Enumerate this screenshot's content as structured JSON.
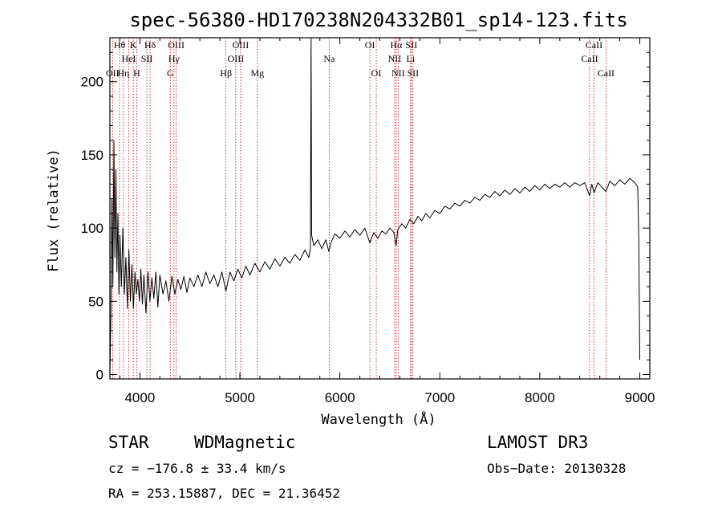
{
  "chart_data": {
    "type": "line",
    "title": "spec-56380-HD170238N204332B01_sp14-123.fits",
    "xlabel": "Wavelength (Å)",
    "ylabel": "Flux (relative)",
    "xlim": [
      3700,
      9100
    ],
    "ylim": [
      -3,
      230
    ],
    "x_ticks": [
      4000,
      5000,
      6000,
      7000,
      8000,
      9000
    ],
    "y_ticks": [
      0,
      50,
      100,
      150,
      200
    ],
    "x_tick_labels": [
      "4000",
      "5000",
      "6000",
      "7000",
      "8000",
      "9000"
    ],
    "y_tick_labels": [
      "0",
      "50",
      "100",
      "150",
      "200"
    ],
    "grid": false,
    "series": [
      {
        "name": "flux",
        "points": [
          [
            3700,
            0
          ],
          [
            3710,
            40
          ],
          [
            3720,
            120
          ],
          [
            3730,
            60
          ],
          [
            3740,
            160
          ],
          [
            3750,
            80
          ],
          [
            3760,
            140
          ],
          [
            3770,
            70
          ],
          [
            3780,
            110
          ],
          [
            3790,
            55
          ],
          [
            3800,
            95
          ],
          [
            3815,
            60
          ],
          [
            3830,
            100
          ],
          [
            3845,
            55
          ],
          [
            3860,
            80
          ],
          [
            3875,
            45
          ],
          [
            3890,
            85
          ],
          [
            3905,
            50
          ],
          [
            3920,
            75
          ],
          [
            3935,
            45
          ],
          [
            3950,
            70
          ],
          [
            3965,
            55
          ],
          [
            3980,
            65
          ],
          [
            3995,
            50
          ],
          [
            4010,
            72
          ],
          [
            4025,
            48
          ],
          [
            4040,
            68
          ],
          [
            4060,
            42
          ],
          [
            4080,
            70
          ],
          [
            4100,
            50
          ],
          [
            4120,
            66
          ],
          [
            4140,
            52
          ],
          [
            4160,
            70
          ],
          [
            4180,
            46
          ],
          [
            4200,
            68
          ],
          [
            4230,
            55
          ],
          [
            4260,
            64
          ],
          [
            4290,
            50
          ],
          [
            4320,
            67
          ],
          [
            4350,
            55
          ],
          [
            4380,
            65
          ],
          [
            4410,
            58
          ],
          [
            4440,
            67
          ],
          [
            4470,
            56
          ],
          [
            4500,
            66
          ],
          [
            4540,
            60
          ],
          [
            4580,
            68
          ],
          [
            4620,
            60
          ],
          [
            4660,
            70
          ],
          [
            4700,
            62
          ],
          [
            4740,
            68
          ],
          [
            4780,
            60
          ],
          [
            4820,
            70
          ],
          [
            4860,
            57
          ],
          [
            4900,
            70
          ],
          [
            4940,
            64
          ],
          [
            4980,
            72
          ],
          [
            5020,
            66
          ],
          [
            5060,
            74
          ],
          [
            5100,
            68
          ],
          [
            5150,
            76
          ],
          [
            5200,
            70
          ],
          [
            5250,
            77
          ],
          [
            5300,
            72
          ],
          [
            5350,
            79
          ],
          [
            5400,
            74
          ],
          [
            5450,
            80
          ],
          [
            5500,
            76
          ],
          [
            5550,
            82
          ],
          [
            5600,
            78
          ],
          [
            5650,
            85
          ],
          [
            5690,
            80
          ],
          [
            5705,
            86
          ],
          [
            5712,
            230
          ],
          [
            5718,
            95
          ],
          [
            5740,
            88
          ],
          [
            5780,
            92
          ],
          [
            5820,
            86
          ],
          [
            5860,
            92
          ],
          [
            5890,
            84
          ],
          [
            5910,
            90
          ],
          [
            5950,
            96
          ],
          [
            6000,
            93
          ],
          [
            6050,
            98
          ],
          [
            6100,
            94
          ],
          [
            6150,
            99
          ],
          [
            6200,
            95
          ],
          [
            6250,
            100
          ],
          [
            6300,
            90
          ],
          [
            6340,
            97
          ],
          [
            6380,
            93
          ],
          [
            6420,
            98
          ],
          [
            6460,
            96
          ],
          [
            6500,
            100
          ],
          [
            6540,
            97
          ],
          [
            6563,
            88
          ],
          [
            6580,
            99
          ],
          [
            6620,
            103
          ],
          [
            6660,
            100
          ],
          [
            6700,
            106
          ],
          [
            6740,
            103
          ],
          [
            6780,
            108
          ],
          [
            6820,
            105
          ],
          [
            6860,
            110
          ],
          [
            6900,
            107
          ],
          [
            6950,
            112
          ],
          [
            7000,
            110
          ],
          [
            7050,
            115
          ],
          [
            7100,
            113
          ],
          [
            7150,
            117
          ],
          [
            7200,
            115
          ],
          [
            7250,
            119
          ],
          [
            7300,
            117
          ],
          [
            7350,
            121
          ],
          [
            7400,
            119
          ],
          [
            7450,
            123
          ],
          [
            7500,
            121
          ],
          [
            7550,
            125
          ],
          [
            7600,
            122
          ],
          [
            7650,
            126
          ],
          [
            7700,
            123
          ],
          [
            7750,
            127
          ],
          [
            7800,
            124
          ],
          [
            7850,
            128
          ],
          [
            7900,
            125
          ],
          [
            7950,
            129
          ],
          [
            8000,
            126
          ],
          [
            8050,
            130
          ],
          [
            8100,
            127
          ],
          [
            8150,
            130
          ],
          [
            8200,
            128
          ],
          [
            8250,
            131
          ],
          [
            8300,
            128
          ],
          [
            8350,
            131
          ],
          [
            8400,
            129
          ],
          [
            8450,
            131
          ],
          [
            8498,
            122
          ],
          [
            8520,
            130
          ],
          [
            8542,
            124
          ],
          [
            8580,
            131
          ],
          [
            8620,
            128
          ],
          [
            8662,
            125
          ],
          [
            8700,
            132
          ],
          [
            8750,
            129
          ],
          [
            8800,
            133
          ],
          [
            8850,
            130
          ],
          [
            8900,
            134
          ],
          [
            8950,
            131
          ],
          [
            8980,
            128
          ],
          [
            8990,
            90
          ],
          [
            9000,
            10
          ]
        ]
      }
    ],
    "line_markers": [
      {
        "label": "OII",
        "wavelength": 3727,
        "row": 3
      },
      {
        "label": "Hθ",
        "wavelength": 3797,
        "row": 1
      },
      {
        "label": "Hη",
        "wavelength": 3835,
        "row": 3
      },
      {
        "label": "HeI",
        "wavelength": 3889,
        "row": 2
      },
      {
        "label": "K",
        "wavelength": 3934,
        "row": 1
      },
      {
        "label": "H",
        "wavelength": 3968,
        "row": 3
      },
      {
        "label": "SII",
        "wavelength": 4070,
        "row": 2
      },
      {
        "label": "Hδ",
        "wavelength": 4102,
        "row": 1
      },
      {
        "label": "G",
        "wavelength": 4304,
        "row": 3
      },
      {
        "label": "Hγ",
        "wavelength": 4341,
        "row": 2
      },
      {
        "label": "OIII",
        "wavelength": 4363,
        "row": 1
      },
      {
        "label": "Hβ",
        "wavelength": 4861,
        "row": 3
      },
      {
        "label": "OIII",
        "wavelength": 4959,
        "row": 2
      },
      {
        "label": "OIII",
        "wavelength": 5007,
        "row": 1
      },
      {
        "label": "Mg",
        "wavelength": 5175,
        "row": 3
      },
      {
        "label": "Na",
        "wavelength": 5894,
        "row": 2
      },
      {
        "label": "OI",
        "wavelength": 6300,
        "row": 1
      },
      {
        "label": "OI",
        "wavelength": 6364,
        "row": 3
      },
      {
        "label": "NII",
        "wavelength": 6548,
        "row": 2
      },
      {
        "label": "Hα",
        "wavelength": 6563,
        "row": 1
      },
      {
        "label": "NII",
        "wavelength": 6583,
        "row": 3
      },
      {
        "label": "Li",
        "wavelength": 6708,
        "row": 2
      },
      {
        "label": "SII",
        "wavelength": 6716,
        "row": 1
      },
      {
        "label": "SII",
        "wavelength": 6731,
        "row": 3
      },
      {
        "label": "CaII",
        "wavelength": 8498,
        "row": 2
      },
      {
        "label": "CaII",
        "wavelength": 8542,
        "row": 1
      },
      {
        "label": "CaII",
        "wavelength": 8662,
        "row": 3
      }
    ]
  },
  "colors": {
    "spectrum": "#000000",
    "axes": "#000000",
    "marker_line": "#cc0000",
    "background": "#ffffff"
  },
  "info": {
    "object_class": "STAR",
    "subclass": "WDMagnetic",
    "survey": "LAMOST DR3",
    "cz": "cz = −176.8 ± 33.4 km/s",
    "obs_date": "Obs−Date: 20130328",
    "coords": "RA = 253.15887, DEC =  21.36452"
  }
}
